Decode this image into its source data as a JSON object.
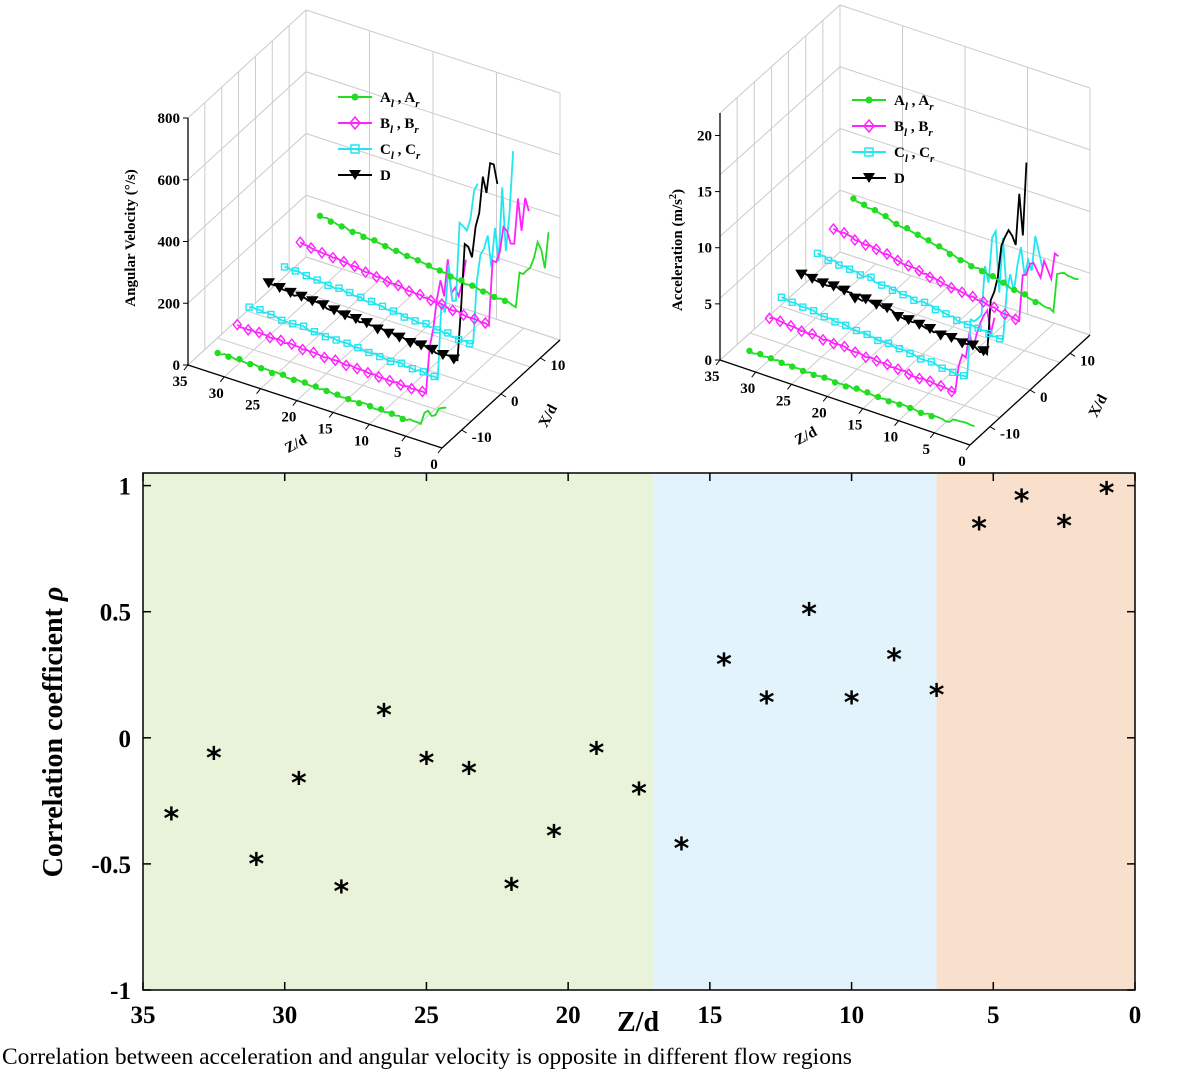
{
  "caption": "Correlation between acceleration and angular velocity is opposite in different flow regions",
  "colors": {
    "A": "#22dd22",
    "B": "#ff22ff",
    "C": "#22e6f0",
    "D": "#000000",
    "region_far": "#e8f3da",
    "region_mid": "#e2f3fb",
    "region_near": "#f8e0cc"
  },
  "chart_data": [
    {
      "type": "line",
      "panel": "angular-velocity-3d",
      "ylabel": "Angular Velocity (°/s)",
      "zlabel": "Z/d",
      "xlabel": "X/d",
      "z_ticks": [
        "35",
        "30",
        "25",
        "20",
        "15",
        "10",
        "5",
        "0"
      ],
      "x_ticks": [
        "-10",
        "0",
        "10"
      ],
      "y_ticks": [
        "0",
        "200",
        "400",
        "600",
        "800"
      ],
      "ylim": [
        0,
        800
      ],
      "legend": [
        {
          "key": "A",
          "sub1": "l",
          "sub2": "r",
          "letter": "A",
          "marker": "dot"
        },
        {
          "key": "B",
          "sub1": "l",
          "sub2": "r",
          "letter": "B",
          "marker": "diamond"
        },
        {
          "key": "C",
          "sub1": "l",
          "sub2": "r",
          "letter": "C",
          "marker": "square"
        },
        {
          "key": "D",
          "letter": "D",
          "marker": "triangle"
        }
      ]
    },
    {
      "type": "line",
      "panel": "acceleration-3d",
      "ylabel": "Acceleration (m/s",
      "ylabel_sup": "2",
      "ylabel_end": ")",
      "zlabel": "Z/d",
      "xlabel": "X/d",
      "z_ticks": [
        "35",
        "30",
        "25",
        "20",
        "15",
        "10",
        "5",
        "0"
      ],
      "x_ticks": [
        "-10",
        "0",
        "10"
      ],
      "y_ticks": [
        "0",
        "5",
        "10",
        "15",
        "20"
      ],
      "ylim": [
        0,
        22
      ],
      "legend": [
        {
          "key": "A",
          "sub1": "l",
          "sub2": "r",
          "letter": "A",
          "marker": "dot"
        },
        {
          "key": "B",
          "sub1": "l",
          "sub2": "r",
          "letter": "B",
          "marker": "diamond"
        },
        {
          "key": "C",
          "sub1": "l",
          "sub2": "r",
          "letter": "C",
          "marker": "square"
        },
        {
          "key": "D",
          "letter": "D",
          "marker": "triangle"
        }
      ]
    },
    {
      "type": "scatter",
      "panel": "correlation",
      "xlabel": "Z/d",
      "ylabel": "Correlation coefficient ",
      "ylabel_symbol": "ρ",
      "xlim": [
        35,
        0
      ],
      "ylim": [
        -1,
        1.05
      ],
      "x_ticks": [
        35,
        30,
        25,
        20,
        15,
        10,
        5,
        0
      ],
      "y_ticks": [
        1,
        0.5,
        0,
        -0.5,
        -1
      ],
      "y_tick_labels": [
        "1",
        "0.5",
        "0",
        "-0.5",
        "-1"
      ],
      "regions": [
        {
          "from": 35,
          "to": 17,
          "color_key": "region_far"
        },
        {
          "from": 17,
          "to": 7,
          "color_key": "region_mid"
        },
        {
          "from": 7,
          "to": 0,
          "color_key": "region_near"
        }
      ],
      "marker": "*",
      "points": [
        {
          "x": 34.0,
          "y": -0.31
        },
        {
          "x": 32.5,
          "y": -0.07
        },
        {
          "x": 31.0,
          "y": -0.49
        },
        {
          "x": 29.5,
          "y": -0.17
        },
        {
          "x": 28.0,
          "y": -0.6
        },
        {
          "x": 26.5,
          "y": 0.1
        },
        {
          "x": 25.0,
          "y": -0.09
        },
        {
          "x": 23.5,
          "y": -0.13
        },
        {
          "x": 22.0,
          "y": -0.59
        },
        {
          "x": 20.5,
          "y": -0.38
        },
        {
          "x": 19.0,
          "y": -0.05
        },
        {
          "x": 17.5,
          "y": -0.21
        },
        {
          "x": 16.0,
          "y": -0.43
        },
        {
          "x": 14.5,
          "y": 0.3
        },
        {
          "x": 13.0,
          "y": 0.15
        },
        {
          "x": 11.5,
          "y": 0.5
        },
        {
          "x": 10.0,
          "y": 0.15
        },
        {
          "x": 8.5,
          "y": 0.32
        },
        {
          "x": 7.0,
          "y": 0.18
        },
        {
          "x": 5.5,
          "y": 0.84
        },
        {
          "x": 4.0,
          "y": 0.95
        },
        {
          "x": 2.5,
          "y": 0.85
        },
        {
          "x": 1.0,
          "y": 0.98
        }
      ]
    }
  ]
}
